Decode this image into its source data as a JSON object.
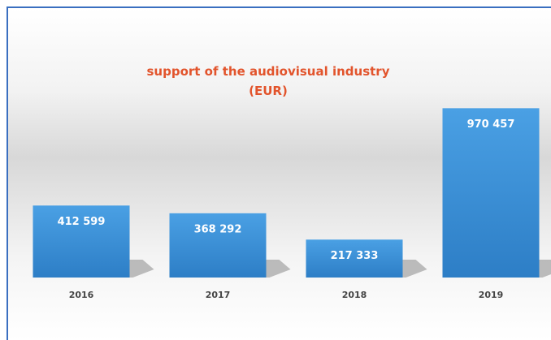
{
  "chart_data": {
    "type": "bar",
    "title": "support of the audiovisual industry (EUR)",
    "categories": [
      "2016",
      "2017",
      "2018",
      "2019"
    ],
    "values": [
      412599,
      368292,
      217333,
      970457
    ],
    "value_labels": [
      "412 599",
      "368 292",
      "217 333",
      "970 457"
    ],
    "color": "#3a8fd6",
    "ylim": [
      0,
      1000000
    ]
  }
}
